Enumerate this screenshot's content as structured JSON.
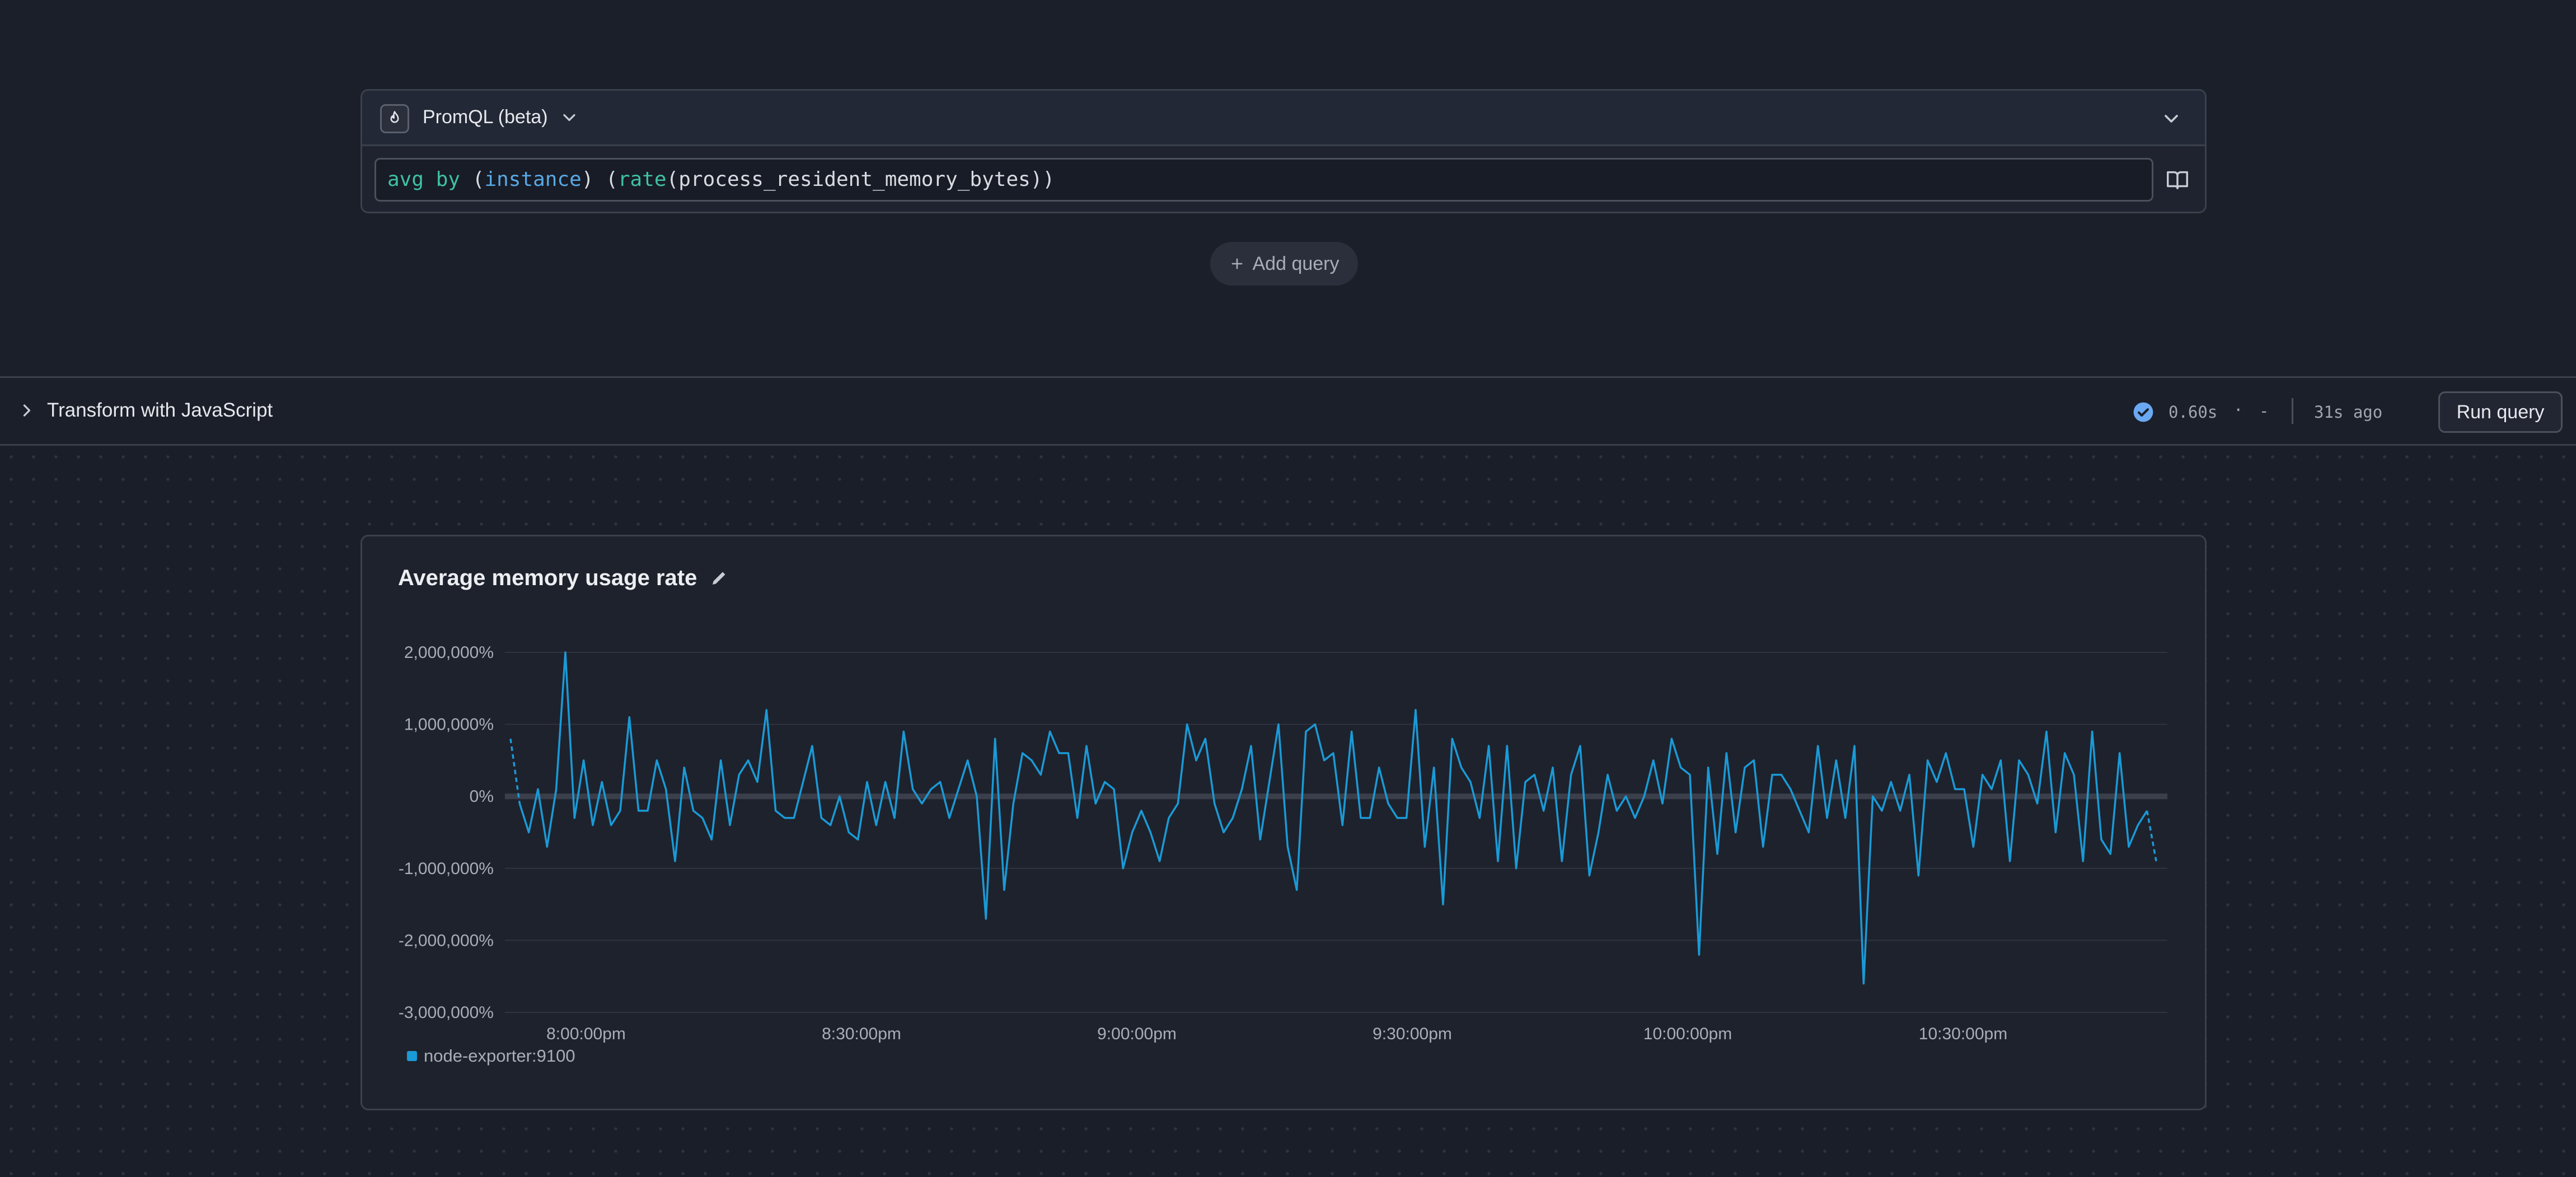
{
  "query": {
    "language_label": "PromQL (beta)",
    "tokens": {
      "t1": "avg",
      "t2": " ",
      "t3": "by",
      "t4": " (",
      "t5": "instance",
      "t6": ") (",
      "t7": "rate",
      "t8": "(",
      "t9": "process_resident_memory_bytes",
      "t10": "))"
    },
    "add_query_label": "Add query"
  },
  "transform": {
    "title": "Transform with JavaScript",
    "duration": "0.60s",
    "dot": "·",
    "dash": "-",
    "ago": "31s ago",
    "run_label": "Run query"
  },
  "chart": {
    "title": "Average memory usage rate",
    "legend_label": "node-exporter:9100"
  },
  "colors": {
    "series": "#1a9ad6",
    "accent_check": "#6aa8f2"
  },
  "chart_data": {
    "type": "line",
    "title": "Average memory usage rate",
    "xlabel": "",
    "ylabel": "",
    "x_ticks": [
      "8:00:00pm",
      "8:30:00pm",
      "9:00:00pm",
      "9:30:00pm",
      "10:00:00pm",
      "10:30:00pm"
    ],
    "y_ticks": [
      "2,000,000%",
      "1,000,000%",
      "0%",
      "-1,000,000%",
      "-2,000,000%",
      "-3,000,000%"
    ],
    "ylim": [
      -3000000,
      2000000
    ],
    "grid": true,
    "legend_position": "bottom-left",
    "series": [
      {
        "name": "node-exporter:9100",
        "values": [
          800000,
          -100000,
          -500000,
          100000,
          -700000,
          100000,
          2000000,
          -300000,
          500000,
          -400000,
          200000,
          -400000,
          -200000,
          1100000,
          -200000,
          -200000,
          500000,
          100000,
          -900000,
          400000,
          -200000,
          -300000,
          -600000,
          500000,
          -400000,
          300000,
          500000,
          200000,
          1200000,
          -200000,
          -300000,
          -300000,
          200000,
          700000,
          -300000,
          -400000,
          0,
          -500000,
          -600000,
          200000,
          -400000,
          200000,
          -300000,
          900000,
          100000,
          -100000,
          100000,
          200000,
          -300000,
          100000,
          500000,
          0,
          -1700000,
          800000,
          -1300000,
          -100000,
          600000,
          500000,
          300000,
          900000,
          600000,
          600000,
          -300000,
          700000,
          -100000,
          200000,
          100000,
          -1000000,
          -500000,
          -200000,
          -500000,
          -900000,
          -300000,
          -100000,
          1000000,
          500000,
          800000,
          -100000,
          -500000,
          -300000,
          100000,
          700000,
          -600000,
          200000,
          1000000,
          -700000,
          -1300000,
          900000,
          1000000,
          500000,
          600000,
          -400000,
          900000,
          -300000,
          -300000,
          400000,
          -100000,
          -300000,
          -300000,
          1200000,
          -700000,
          400000,
          -1500000,
          800000,
          400000,
          200000,
          -300000,
          700000,
          -900000,
          700000,
          -1000000,
          200000,
          300000,
          -200000,
          400000,
          -900000,
          300000,
          700000,
          -1100000,
          -500000,
          300000,
          -200000,
          0,
          -300000,
          0,
          500000,
          -100000,
          800000,
          400000,
          300000,
          -2200000,
          400000,
          -800000,
          600000,
          -500000,
          400000,
          500000,
          -700000,
          300000,
          300000,
          100000,
          -200000,
          -500000,
          700000,
          -300000,
          500000,
          -300000,
          700000,
          -2600000,
          0,
          -200000,
          200000,
          -200000,
          300000,
          -1100000,
          500000,
          200000,
          600000,
          100000,
          100000,
          -700000,
          300000,
          100000,
          500000,
          -900000,
          500000,
          300000,
          -100000,
          900000,
          -500000,
          600000,
          300000,
          -900000,
          900000,
          -600000,
          -800000,
          600000,
          -700000,
          -400000,
          -200000,
          -900000
        ]
      }
    ]
  }
}
